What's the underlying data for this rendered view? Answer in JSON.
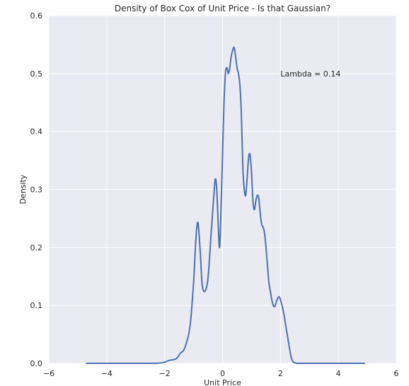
{
  "chart_data": {
    "type": "line",
    "title": "Density of Box Cox of Unit Price - Is that Gaussian?",
    "xlabel": "Unit Price",
    "ylabel": "Density",
    "xlim": [
      -6,
      6
    ],
    "ylim": [
      0,
      0.6
    ],
    "xticks": [
      -6,
      -4,
      -2,
      0,
      2,
      4,
      6
    ],
    "yticks": [
      0.0,
      0.1,
      0.2,
      0.3,
      0.4,
      0.5,
      0.6
    ],
    "xtick_labels": [
      "−6",
      "−4",
      "−2",
      "0",
      "2",
      "4",
      "6"
    ],
    "ytick_labels": [
      "0.0",
      "0.1",
      "0.2",
      "0.3",
      "0.4",
      "0.5",
      "0.6"
    ],
    "grid": true,
    "background_color": "#eaeaf2",
    "grid_color": "#ffffff",
    "line_color": "#4c72b0",
    "annotation": {
      "text": "Lambda = 0.14",
      "x": 2.0,
      "y": 0.5
    },
    "series": [
      {
        "x": [
          -4.7,
          -3.0,
          -2.3,
          -2.0,
          -1.85,
          -1.6,
          -1.45,
          -1.35,
          -1.25,
          -1.12,
          -1.0,
          -0.92,
          -0.85,
          -0.78,
          -0.7,
          -0.6,
          -0.5,
          -0.4,
          -0.3,
          -0.25,
          -0.2,
          -0.15,
          -0.1,
          -0.05,
          0.0,
          0.05,
          0.1,
          0.15,
          0.2,
          0.25,
          0.3,
          0.35,
          0.4,
          0.45,
          0.5,
          0.55,
          0.6,
          0.65,
          0.7,
          0.75,
          0.8,
          0.85,
          0.9,
          0.95,
          1.0,
          1.05,
          1.1,
          1.15,
          1.2,
          1.25,
          1.3,
          1.35,
          1.4,
          1.45,
          1.5,
          1.55,
          1.6,
          1.65,
          1.7,
          1.75,
          1.8,
          1.85,
          1.9,
          1.95,
          2.0,
          2.1,
          2.2,
          2.3,
          2.35,
          2.4,
          2.45,
          2.5,
          2.55,
          2.6,
          2.65,
          2.7,
          2.8,
          3.0,
          4.0,
          4.9
        ],
        "y": [
          0.0,
          0.0,
          0.0,
          0.002,
          0.005,
          0.008,
          0.018,
          0.022,
          0.035,
          0.065,
          0.14,
          0.215,
          0.243,
          0.2,
          0.135,
          0.125,
          0.148,
          0.22,
          0.29,
          0.318,
          0.3,
          0.24,
          0.2,
          0.27,
          0.36,
          0.45,
          0.5,
          0.51,
          0.5,
          0.51,
          0.53,
          0.54,
          0.545,
          0.53,
          0.51,
          0.5,
          0.48,
          0.43,
          0.34,
          0.3,
          0.29,
          0.32,
          0.355,
          0.36,
          0.33,
          0.28,
          0.265,
          0.28,
          0.29,
          0.285,
          0.26,
          0.24,
          0.235,
          0.225,
          0.2,
          0.17,
          0.14,
          0.125,
          0.11,
          0.1,
          0.098,
          0.105,
          0.112,
          0.115,
          0.11,
          0.09,
          0.06,
          0.03,
          0.015,
          0.006,
          0.002,
          0.001,
          0.0,
          0.0,
          0.0,
          0.0,
          0.0,
          0.0,
          0.0,
          0.0
        ]
      }
    ]
  }
}
